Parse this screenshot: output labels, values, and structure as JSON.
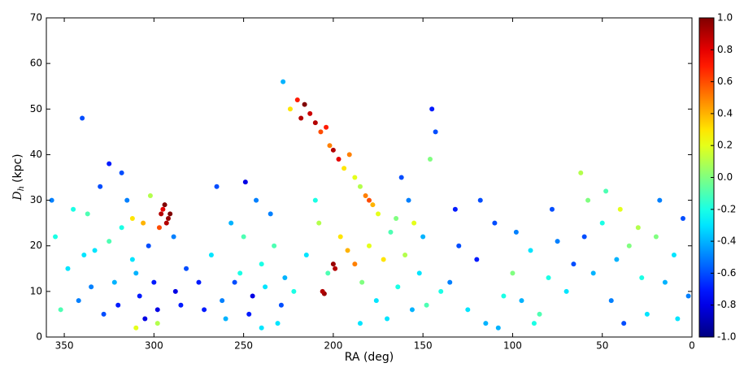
{
  "chart_data": {
    "type": "scatter",
    "xlabel": "RA (deg)",
    "ylabel": {
      "symbol": "D",
      "subscript": "h",
      "unit": "(kpc)"
    },
    "xlim": [
      360,
      0
    ],
    "xticks": [
      350,
      300,
      250,
      200,
      150,
      100,
      50,
      0
    ],
    "ylim": [
      0,
      70
    ],
    "yticks": [
      0,
      10,
      20,
      30,
      40,
      50,
      60,
      70
    ],
    "colormap": "jet",
    "clim": [
      -1,
      1
    ],
    "cticks": [
      {
        "value": -1,
        "label": "-1.0"
      },
      {
        "value": -0.8,
        "label": "-0.8"
      },
      {
        "value": -0.6,
        "label": "-0.6"
      },
      {
        "value": -0.4,
        "label": "-0.4"
      },
      {
        "value": -0.2,
        "label": "-0.2"
      },
      {
        "value": 0,
        "label": "0.0"
      },
      {
        "value": 0.2,
        "label": "0.2"
      },
      {
        "value": 0.4,
        "label": "0.4"
      },
      {
        "value": 0.6,
        "label": "0.6"
      },
      {
        "value": 0.8,
        "label": "0.8"
      },
      {
        "value": 1,
        "label": "1.0"
      }
    ],
    "series": [
      {
        "x": [
          355,
          348,
          342,
          337,
          333,
          328,
          322,
          318,
          312,
          308,
          352,
          345,
          339,
          335,
          330,
          325,
          320,
          315,
          310,
          305,
          303,
          300,
          298,
          296,
          294,
          292,
          295,
          293,
          291,
          297,
          312,
          306,
          302,
          288,
          285,
          282,
          298,
          289,
          310,
          318,
          268,
          262,
          257,
          252,
          247,
          243,
          238,
          233,
          229,
          265,
          260,
          255,
          250,
          245,
          240,
          235,
          231,
          227,
          272,
          249,
          228,
          224,
          220,
          218,
          216,
          213,
          210,
          207,
          204,
          202,
          200,
          197,
          194,
          191,
          188,
          185,
          182,
          180,
          178,
          175,
          222,
          215,
          208,
          203,
          200,
          199,
          196,
          205,
          206,
          192,
          188,
          184,
          180,
          176,
          172,
          168,
          164,
          160,
          156,
          152,
          170,
          165,
          158,
          150,
          146,
          143,
          140,
          155,
          162,
          148,
          135,
          130,
          125,
          120,
          115,
          110,
          105,
          100,
          95,
          90,
          85,
          80,
          75,
          70,
          66,
          132,
          118,
          108,
          98,
          88,
          62,
          58,
          55,
          50,
          45,
          40,
          35,
          30,
          25,
          20,
          15,
          10,
          5,
          2,
          48,
          38,
          28,
          18,
          8,
          60,
          357,
          340,
          325,
          275,
          240,
          210,
          185,
          145,
          78,
          42
        ],
        "values": [
          22,
          15,
          8,
          27,
          19,
          5,
          12,
          24,
          17,
          9,
          6,
          28,
          18,
          11,
          33,
          21,
          7,
          30,
          14,
          4,
          20,
          12,
          6,
          27,
          29,
          26,
          28,
          25,
          27,
          24,
          26,
          25,
          31,
          10,
          7,
          15,
          3,
          22,
          2,
          36,
          18,
          8,
          25,
          14,
          5,
          30,
          11,
          20,
          7,
          33,
          4,
          12,
          22,
          9,
          16,
          27,
          3,
          13,
          6,
          34,
          56,
          50,
          52,
          48,
          51,
          49,
          47,
          45,
          46,
          42,
          41,
          39,
          37,
          40,
          35,
          33,
          31,
          30,
          29,
          27,
          10,
          18,
          25,
          14,
          16,
          15,
          22,
          9.5,
          10,
          19,
          16,
          12,
          20,
          8,
          17,
          23,
          11,
          18,
          6,
          14,
          4,
          26,
          30,
          22,
          39,
          45,
          10,
          25,
          35,
          7,
          12,
          20,
          6,
          17,
          3,
          25,
          9,
          14,
          8,
          19,
          5,
          13,
          21,
          10,
          16,
          28,
          30,
          2,
          23,
          3,
          36,
          30,
          14,
          25,
          8,
          28,
          20,
          24,
          5,
          22,
          12,
          18,
          26,
          9,
          32,
          3,
          13,
          30,
          4,
          22,
          30,
          48,
          38,
          12,
          2,
          30,
          3,
          50,
          28,
          17
        ],
        "color_values": [
          -0.2,
          -0.3,
          -0.5,
          -0.1,
          -0.3,
          -0.6,
          -0.4,
          -0.2,
          -0.3,
          -0.7,
          -0.1,
          -0.2,
          -0.3,
          -0.5,
          -0.6,
          -0.1,
          -0.7,
          -0.5,
          -0.4,
          -0.8,
          -0.6,
          -0.7,
          -0.8,
          0.9,
          1.0,
          0.95,
          0.8,
          0.9,
          1.0,
          0.6,
          0.3,
          0.4,
          0.1,
          -0.8,
          -0.7,
          -0.6,
          0.1,
          -0.5,
          0.2,
          -0.6,
          -0.3,
          -0.5,
          -0.4,
          -0.2,
          -0.7,
          -0.5,
          -0.3,
          -0.1,
          -0.6,
          -0.6,
          -0.4,
          -0.6,
          -0.1,
          -0.8,
          -0.2,
          -0.5,
          -0.3,
          -0.4,
          -0.7,
          -0.8,
          -0.4,
          0.3,
          0.7,
          0.9,
          1.0,
          0.85,
          0.9,
          0.6,
          0.7,
          0.5,
          0.9,
          0.8,
          0.3,
          0.5,
          0.2,
          0.1,
          0.5,
          0.6,
          0.4,
          0.2,
          -0.2,
          -0.3,
          0.1,
          -0.1,
          0.95,
          0.9,
          0.3,
          0.95,
          0.9,
          0.4,
          0.5,
          0.0,
          0.2,
          -0.3,
          0.3,
          -0.1,
          -0.2,
          0.1,
          -0.4,
          -0.3,
          -0.3,
          0.0,
          -0.5,
          -0.4,
          0.0,
          -0.6,
          -0.2,
          0.2,
          -0.6,
          -0.1,
          -0.5,
          -0.6,
          -0.3,
          -0.7,
          -0.4,
          -0.6,
          -0.2,
          0.0,
          -0.4,
          -0.3,
          -0.1,
          -0.2,
          -0.5,
          -0.3,
          -0.6,
          -0.7,
          -0.6,
          -0.4,
          -0.5,
          -0.2,
          0.1,
          0.0,
          -0.4,
          -0.2,
          -0.5,
          0.2,
          0.0,
          0.1,
          -0.3,
          0.0,
          -0.4,
          -0.3,
          -0.6,
          -0.5,
          -0.1,
          -0.6,
          -0.2,
          -0.5,
          -0.3,
          -0.6,
          -0.5,
          -0.6,
          -0.7,
          -0.7,
          -0.3,
          -0.2,
          -0.3,
          -0.7,
          -0.6,
          -0.4
        ]
      }
    ]
  }
}
